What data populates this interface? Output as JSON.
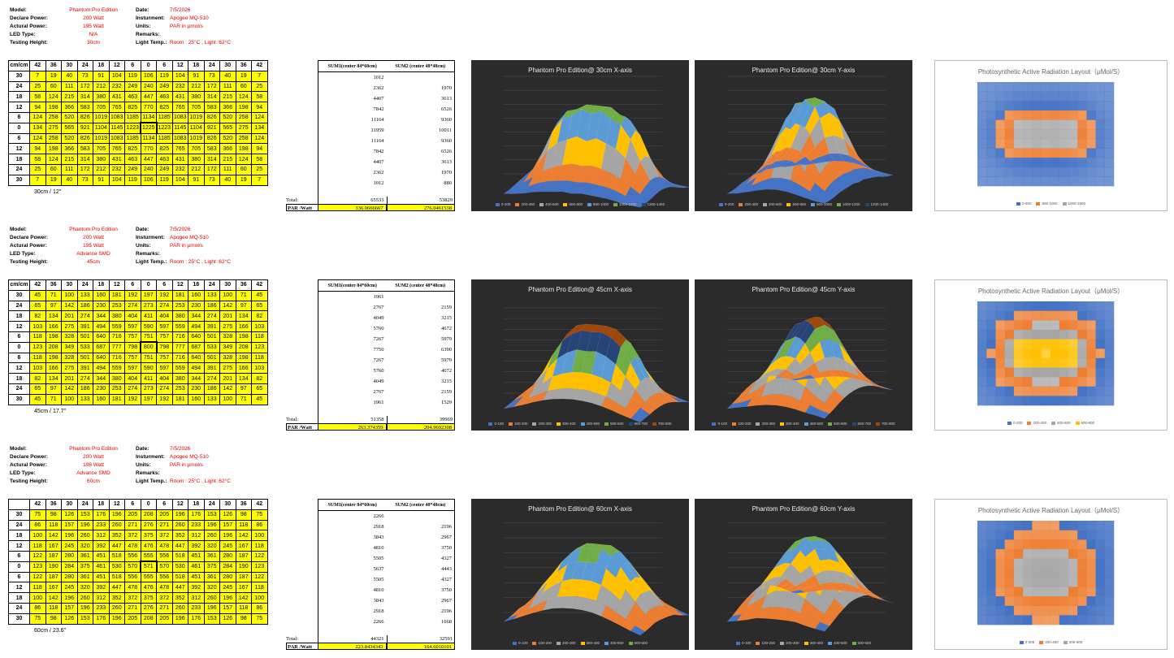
{
  "labels": {
    "model": "Model:",
    "declare": "Declare Power:",
    "actual": "Actural Power:",
    "led": "LED Type:",
    "height": "Testing Height:",
    "date": "Date:",
    "instrument": "Insturment:",
    "units": "Units:",
    "remarks": "Remarks:",
    "light_temp": "Light Temp.:",
    "corner": "cm/cm",
    "total": "Total:",
    "par_watt": "PAR /Watt",
    "sum1": "SUM1(center 84*60cm)",
    "sum2": "SUM2 (center 48*48cm)"
  },
  "sections": [
    {
      "info": {
        "model": "Phantom Pro Edition",
        "declare": "200  Watt",
        "actual": "195  Watt",
        "led": "N/A",
        "height": "30cm",
        "date": "7/5/2026",
        "instrument": "Apogee MQ-510",
        "units": "PAR in μmol/s",
        "remarks": "",
        "light_temp": "Room : 25°C , Light :62°C"
      },
      "corner": "cm/cm",
      "cols": [
        "42",
        "36",
        "30",
        "24",
        "18",
        "12",
        "6",
        "0",
        "6",
        "12",
        "18",
        "24",
        "30",
        "36",
        "42"
      ],
      "rows": [
        {
          "h": "30",
          "v": [
            "7",
            "19",
            "40",
            "73",
            "91",
            "104",
            "119",
            "106",
            "119",
            "104",
            "91",
            "73",
            "40",
            "19",
            "7"
          ]
        },
        {
          "h": "24",
          "v": [
            "25",
            "60",
            "111",
            "172",
            "212",
            "232",
            "249",
            "240",
            "249",
            "232",
            "212",
            "172",
            "111",
            "60",
            "25"
          ]
        },
        {
          "h": "18",
          "v": [
            "58",
            "124",
            "215",
            "314",
            "380",
            "431",
            "463",
            "447",
            "463",
            "431",
            "380",
            "314",
            "215",
            "124",
            "58"
          ]
        },
        {
          "h": "12",
          "v": [
            "94",
            "198",
            "366",
            "583",
            "705",
            "765",
            "825",
            "770",
            "825",
            "765",
            "705",
            "583",
            "366",
            "198",
            "94"
          ]
        },
        {
          "h": "6",
          "v": [
            "124",
            "258",
            "520",
            "826",
            "1019",
            "1083",
            "1185",
            "1134",
            "1185",
            "1083",
            "1019",
            "826",
            "520",
            "258",
            "124"
          ]
        },
        {
          "h": "0",
          "v": [
            "134",
            "275",
            "565",
            "921",
            "1104",
            "1145",
            "1223",
            "1225",
            "1223",
            "1145",
            "1104",
            "921",
            "565",
            "275",
            "134"
          ]
        },
        {
          "h": "6",
          "v": [
            "124",
            "258",
            "520",
            "826",
            "1019",
            "1083",
            "1185",
            "1134",
            "1185",
            "1083",
            "1019",
            "826",
            "520",
            "258",
            "124"
          ]
        },
        {
          "h": "12",
          "v": [
            "94",
            "198",
            "366",
            "583",
            "705",
            "765",
            "825",
            "770",
            "825",
            "765",
            "705",
            "583",
            "366",
            "198",
            "94"
          ]
        },
        {
          "h": "18",
          "v": [
            "58",
            "124",
            "215",
            "314",
            "380",
            "431",
            "463",
            "447",
            "463",
            "431",
            "380",
            "314",
            "215",
            "124",
            "58"
          ]
        },
        {
          "h": "24",
          "v": [
            "25",
            "60",
            "111",
            "172",
            "212",
            "232",
            "249",
            "240",
            "249",
            "232",
            "212",
            "172",
            "111",
            "60",
            "25"
          ]
        },
        {
          "h": "30",
          "v": [
            "7",
            "19",
            "40",
            "73",
            "91",
            "104",
            "119",
            "106",
            "119",
            "104",
            "91",
            "73",
            "40",
            "19",
            "7"
          ]
        }
      ],
      "caption": "30cm / 12\"",
      "sum_rows": [
        [
          "1012",
          ""
        ],
        [
          "2362",
          "1970"
        ],
        [
          "4407",
          "3613"
        ],
        [
          "7842",
          "6526"
        ],
        [
          "11164",
          "9360"
        ],
        [
          "11959",
          "10011"
        ],
        [
          "11164",
          "9360"
        ],
        [
          "7842",
          "6526"
        ],
        [
          "4407",
          "3613"
        ],
        [
          "2362",
          "1970"
        ],
        [
          "1012",
          "880"
        ]
      ],
      "total": [
        "65533",
        "53829"
      ],
      "par": [
        "336.0666667",
        "276.0461538"
      ],
      "chart_x": {
        "title": "Phantom Pro Edition@ 30cm X-axis",
        "legend": [
          "0-200",
          "200-400",
          "400-600",
          "600-800",
          "800-1000",
          "1000-1200",
          "1200-1400"
        ]
      },
      "chart_y": {
        "title": "Phantom Pro Edition@ 30cm Y-axis",
        "legend": [
          "0-200",
          "200-400",
          "400-600",
          "600-800",
          "800-1000",
          "1000-1200",
          "1200-1400"
        ]
      },
      "contour": {
        "title": "Photosynthetic  Active Radiation Layout（μMol/S）",
        "legend": [
          "0-500",
          "500-1000",
          "1000-1500"
        ]
      }
    },
    {
      "info": {
        "model": "Phantom Pro Edition",
        "declare": "200  Watt",
        "actual": "195  Watt",
        "led": "Advance SMD",
        "height": "45cm",
        "date": "7/5/2026",
        "instrument": "Apogee MQ-510",
        "units": "PAR in μmol/s",
        "remarks": "",
        "light_temp": "Room : 25°C , Light :62°C"
      },
      "corner": "cm/cm",
      "cols": [
        "42",
        "36",
        "30",
        "24",
        "18",
        "12",
        "6",
        "0",
        "6",
        "12",
        "18",
        "24",
        "30",
        "36",
        "42"
      ],
      "rows": [
        {
          "h": "30",
          "v": [
            "45",
            "71",
            "100",
            "133",
            "160",
            "181",
            "192",
            "197",
            "192",
            "181",
            "160",
            "133",
            "100",
            "71",
            "45"
          ]
        },
        {
          "h": "24",
          "v": [
            "65",
            "97",
            "142",
            "186",
            "230",
            "253",
            "274",
            "273",
            "274",
            "253",
            "230",
            "186",
            "142",
            "97",
            "65"
          ]
        },
        {
          "h": "18",
          "v": [
            "82",
            "134",
            "201",
            "274",
            "344",
            "380",
            "404",
            "411",
            "404",
            "380",
            "344",
            "274",
            "201",
            "134",
            "82"
          ]
        },
        {
          "h": "12",
          "v": [
            "103",
            "166",
            "275",
            "391",
            "494",
            "559",
            "597",
            "590",
            "597",
            "559",
            "494",
            "391",
            "275",
            "166",
            "103"
          ]
        },
        {
          "h": "6",
          "v": [
            "118",
            "198",
            "328",
            "501",
            "640",
            "716",
            "757",
            "751",
            "757",
            "716",
            "640",
            "501",
            "328",
            "198",
            "118"
          ]
        },
        {
          "h": "0",
          "v": [
            "123",
            "208",
            "349",
            "533",
            "687",
            "777",
            "798",
            "800",
            "798",
            "777",
            "687",
            "533",
            "349",
            "208",
            "123"
          ]
        },
        {
          "h": "6",
          "v": [
            "118",
            "198",
            "328",
            "501",
            "640",
            "716",
            "757",
            "751",
            "757",
            "716",
            "640",
            "501",
            "328",
            "198",
            "118"
          ]
        },
        {
          "h": "12",
          "v": [
            "103",
            "166",
            "275",
            "391",
            "494",
            "559",
            "597",
            "590",
            "597",
            "559",
            "494",
            "391",
            "275",
            "166",
            "103"
          ]
        },
        {
          "h": "18",
          "v": [
            "82",
            "134",
            "201",
            "274",
            "344",
            "380",
            "404",
            "411",
            "404",
            "380",
            "344",
            "274",
            "201",
            "134",
            "82"
          ]
        },
        {
          "h": "24",
          "v": [
            "65",
            "97",
            "142",
            "186",
            "230",
            "253",
            "274",
            "273",
            "274",
            "253",
            "230",
            "186",
            "142",
            "97",
            "65"
          ]
        },
        {
          "h": "30",
          "v": [
            "45",
            "71",
            "100",
            "133",
            "160",
            "181",
            "192",
            "197",
            "192",
            "181",
            "160",
            "133",
            "100",
            "71",
            "45"
          ]
        }
      ],
      "caption": "45cm / 17.7\"",
      "sum_rows": [
        [
          "1961",
          ""
        ],
        [
          "2767",
          "2159"
        ],
        [
          "4049",
          "3215"
        ],
        [
          "5760",
          "4672"
        ],
        [
          "7267",
          "5979"
        ],
        [
          "7750",
          "6390"
        ],
        [
          "7267",
          "5979"
        ],
        [
          "5760",
          "4672"
        ],
        [
          "4049",
          "3215"
        ],
        [
          "2767",
          "2159"
        ],
        [
          "1961",
          "1529"
        ]
      ],
      "total": [
        "51358",
        "39969"
      ],
      "par": [
        "263.374359",
        "204.9692308"
      ],
      "chart_x": {
        "title": "Phantom Pro Edition@ 45cm X-axis",
        "legend": [
          "0-100",
          "100-200",
          "200-300",
          "300-400",
          "400-500",
          "500-600",
          "600-700",
          "700-800"
        ]
      },
      "chart_y": {
        "title": "Phantom Pro Edition@ 45cm Y-axis",
        "legend": [
          "0-100",
          "100-200",
          "200-300",
          "300-400",
          "400-500",
          "500-600",
          "600-700",
          "700-800"
        ]
      },
      "contour": {
        "title": "Photosynthetic  Active Radiation Layout（μMol/S）",
        "legend": [
          "0-200",
          "200-400",
          "400-600",
          "600-800"
        ]
      }
    },
    {
      "info": {
        "model": "Phantom Pro Edition",
        "declare": "200  Watt",
        "actual": "198  Watt",
        "led": "Advance SMD",
        "height": "60cm",
        "date": "7/5/2026",
        "instrument": "Apogee MQ-510",
        "units": "PAR in μmol/s",
        "remarks": "",
        "light_temp": "Room : 25°C , Light :62°C"
      },
      "corner": "",
      "cols": [
        "42",
        "36",
        "30",
        "24",
        "18",
        "12",
        "6",
        "0",
        "6",
        "12",
        "18",
        "24",
        "30",
        "36",
        "42"
      ],
      "rows": [
        {
          "h": "30",
          "v": [
            "75",
            "98",
            "126",
            "153",
            "176",
            "196",
            "205",
            "208",
            "205",
            "196",
            "176",
            "153",
            "126",
            "98",
            "75"
          ]
        },
        {
          "h": "24",
          "v": [
            "86",
            "118",
            "157",
            "196",
            "233",
            "260",
            "271",
            "276",
            "271",
            "260",
            "233",
            "196",
            "157",
            "118",
            "86"
          ]
        },
        {
          "h": "18",
          "v": [
            "100",
            "142",
            "196",
            "260",
            "312",
            "352",
            "372",
            "375",
            "372",
            "352",
            "312",
            "260",
            "196",
            "142",
            "100"
          ]
        },
        {
          "h": "12",
          "v": [
            "118",
            "167",
            "245",
            "320",
            "392",
            "447",
            "478",
            "476",
            "478",
            "447",
            "392",
            "320",
            "245",
            "167",
            "118"
          ]
        },
        {
          "h": "6",
          "v": [
            "122",
            "187",
            "280",
            "361",
            "451",
            "518",
            "556",
            "555",
            "556",
            "518",
            "451",
            "361",
            "280",
            "187",
            "122"
          ]
        },
        {
          "h": "0",
          "v": [
            "123",
            "190",
            "284",
            "375",
            "461",
            "530",
            "570",
            "571",
            "570",
            "530",
            "461",
            "375",
            "284",
            "190",
            "123"
          ]
        },
        {
          "h": "6",
          "v": [
            "122",
            "187",
            "280",
            "361",
            "451",
            "518",
            "556",
            "555",
            "556",
            "518",
            "451",
            "361",
            "280",
            "187",
            "122"
          ]
        },
        {
          "h": "12",
          "v": [
            "118",
            "167",
            "245",
            "320",
            "392",
            "447",
            "478",
            "476",
            "478",
            "447",
            "392",
            "320",
            "245",
            "167",
            "118"
          ]
        },
        {
          "h": "18",
          "v": [
            "100",
            "142",
            "196",
            "260",
            "312",
            "352",
            "372",
            "375",
            "372",
            "352",
            "312",
            "260",
            "196",
            "142",
            "100"
          ]
        },
        {
          "h": "24",
          "v": [
            "86",
            "118",
            "157",
            "196",
            "233",
            "260",
            "271",
            "276",
            "271",
            "260",
            "233",
            "196",
            "157",
            "118",
            "86"
          ]
        },
        {
          "h": "30",
          "v": [
            "75",
            "98",
            "126",
            "153",
            "176",
            "196",
            "205",
            "208",
            "205",
            "196",
            "176",
            "153",
            "126",
            "98",
            "75"
          ]
        }
      ],
      "caption": "60cm / 23.6\"",
      "sum_rows": [
        [
          "2266",
          ""
        ],
        [
          "2918",
          "2196"
        ],
        [
          "3843",
          "2967"
        ],
        [
          "4810",
          "3750"
        ],
        [
          "5505",
          "4327"
        ],
        [
          "5637",
          "4443"
        ],
        [
          "5505",
          "4327"
        ],
        [
          "4810",
          "3750"
        ],
        [
          "3843",
          "2967"
        ],
        [
          "2918",
          "2196"
        ],
        [
          "2266",
          "1668"
        ]
      ],
      "total": [
        "44321",
        "32591"
      ],
      "par": [
        "223.8434343",
        "164.6010101"
      ],
      "chart_x": {
        "title": "Phantom Pro Edition@ 60cm X-axis",
        "legend": [
          "0-100",
          "100-200",
          "200-300",
          "300-400",
          "400-500",
          "500-600"
        ]
      },
      "chart_y": {
        "title": "Phantom Pro Edition@ 60cm Y-axis",
        "legend": [
          "0-100",
          "100-200",
          "200-300",
          "300-400",
          "400-500",
          "500-600"
        ]
      },
      "contour": {
        "title": "Photosynthetic  Active Radiation Layout（μMol/S）",
        "legend": [
          "0-200",
          "200-400",
          "400-600"
        ]
      }
    }
  ],
  "colors": {
    "band": [
      "#4472c4",
      "#ed7d31",
      "#a5a5a5",
      "#ffc000",
      "#5b9bd5",
      "#70ad47",
      "#264478",
      "#9e480e"
    ],
    "cell": "#ffff00",
    "red_value": "#e00000"
  }
}
